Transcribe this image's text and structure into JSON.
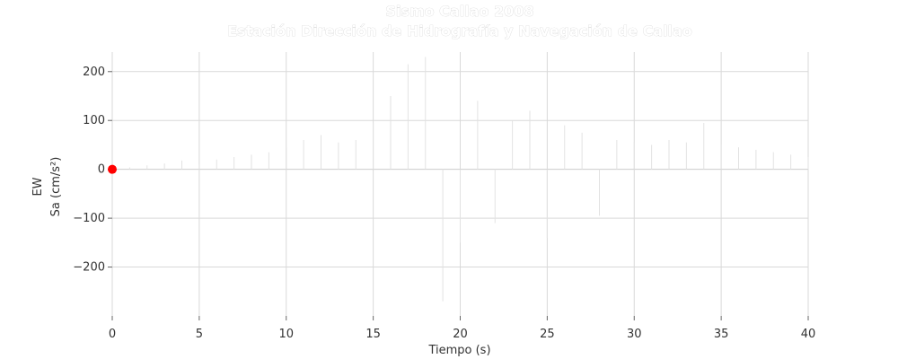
{
  "chart_data": {
    "type": "line",
    "title": "Sismo Callao 2008",
    "subtitle": "Estación Dirección de Hidrografía y Navegación de Callao",
    "xlabel": "Tiempo (s)",
    "ylabel_top": "EW",
    "ylabel_bottom": "Sa (cm/s²)",
    "xlim": [
      0,
      40
    ],
    "ylim": [
      -300,
      240
    ],
    "xticks": [
      0,
      5,
      10,
      15,
      20,
      25,
      30,
      35,
      40
    ],
    "yticks": [
      -200,
      -100,
      0,
      100,
      200
    ],
    "ytick_labels": [
      "−200",
      "−100",
      "0",
      "100",
      "200"
    ],
    "grid": true,
    "marker": {
      "x": 0,
      "y": 0,
      "color": "#ff0000"
    },
    "colors": {
      "signal": "#e2e2e2",
      "grid": "#d9d9d9"
    },
    "series": [
      {
        "values": [
          [
            0,
            0
          ],
          [
            1,
            4
          ],
          [
            2,
            8
          ],
          [
            3,
            12
          ],
          [
            4,
            18
          ],
          [
            5,
            10
          ],
          [
            6,
            20
          ],
          [
            7,
            25
          ],
          [
            8,
            30
          ],
          [
            9,
            35
          ],
          [
            10,
            45
          ],
          [
            11,
            60
          ],
          [
            12,
            70
          ],
          [
            13,
            55
          ],
          [
            14,
            60
          ],
          [
            15,
            95
          ],
          [
            16,
            150
          ],
          [
            17,
            215
          ],
          [
            18,
            230
          ],
          [
            19,
            -270
          ],
          [
            20,
            -150
          ],
          [
            21,
            140
          ],
          [
            22,
            -110
          ],
          [
            23,
            100
          ],
          [
            24,
            120
          ],
          [
            25,
            -140
          ],
          [
            26,
            90
          ],
          [
            27,
            75
          ],
          [
            28,
            -95
          ],
          [
            29,
            60
          ],
          [
            30,
            55
          ],
          [
            31,
            50
          ],
          [
            32,
            60
          ],
          [
            33,
            55
          ],
          [
            34,
            95
          ],
          [
            35,
            50
          ],
          [
            36,
            45
          ],
          [
            37,
            40
          ],
          [
            38,
            35
          ],
          [
            39,
            30
          ],
          [
            40,
            25
          ]
        ]
      }
    ]
  }
}
